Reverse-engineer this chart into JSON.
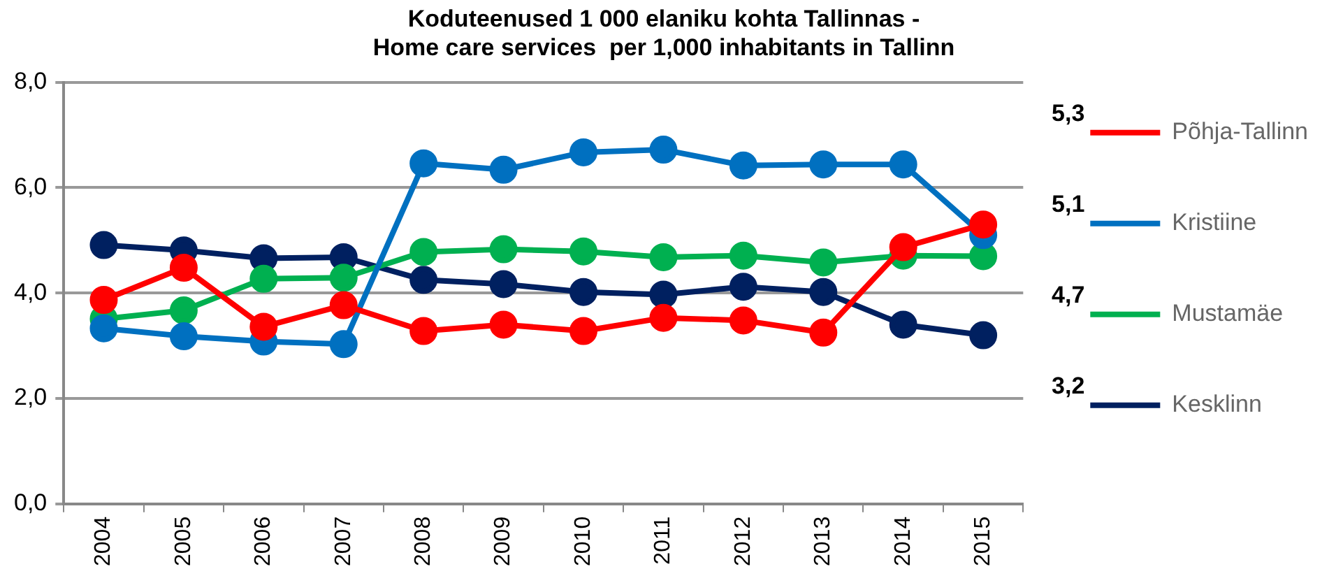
{
  "chart_data": {
    "type": "line",
    "title": "Koduteenused 1 000 elaniku kohta Tallinnas -\nHome care services  per 1,000 inhabitants in Tallinn",
    "categories": [
      "2004",
      "2005",
      "2006",
      "2007",
      "2008",
      "2009",
      "2010",
      "2011",
      "2012",
      "2013",
      "2014",
      "2015"
    ],
    "series": [
      {
        "name": "Põhja-Tallinn",
        "color": "#ff0000",
        "values": [
          3.87,
          4.48,
          3.36,
          3.77,
          3.28,
          3.4,
          3.28,
          3.53,
          3.48,
          3.25,
          4.87,
          5.3
        ]
      },
      {
        "name": "Kristiine",
        "color": "#0070c0",
        "values": [
          3.33,
          3.18,
          3.08,
          3.03,
          6.46,
          6.34,
          6.67,
          6.72,
          6.42,
          6.44,
          6.44,
          5.1
        ]
      },
      {
        "name": "Mustamäe",
        "color": "#00b050",
        "values": [
          3.51,
          3.67,
          4.27,
          4.29,
          4.78,
          4.83,
          4.79,
          4.68,
          4.71,
          4.58,
          4.71,
          4.7
        ]
      },
      {
        "name": "Kesklinn",
        "color": "#002060",
        "values": [
          4.91,
          4.81,
          4.66,
          4.68,
          4.25,
          4.17,
          4.02,
          3.97,
          4.12,
          4.02,
          3.4,
          3.2
        ]
      }
    ],
    "annotations": [
      "5,3",
      "5,1",
      "4,7",
      "3,2"
    ],
    "ylim": [
      0,
      8
    ],
    "yticks": [
      {
        "value": 0,
        "label": "0,0"
      },
      {
        "value": 2,
        "label": "2,0"
      },
      {
        "value": 4,
        "label": "4,0"
      },
      {
        "value": 6,
        "label": "6,0"
      },
      {
        "value": 8,
        "label": "8,0"
      }
    ],
    "grid": "y",
    "legend": "right",
    "marker": "circle",
    "line_style": "solid"
  }
}
